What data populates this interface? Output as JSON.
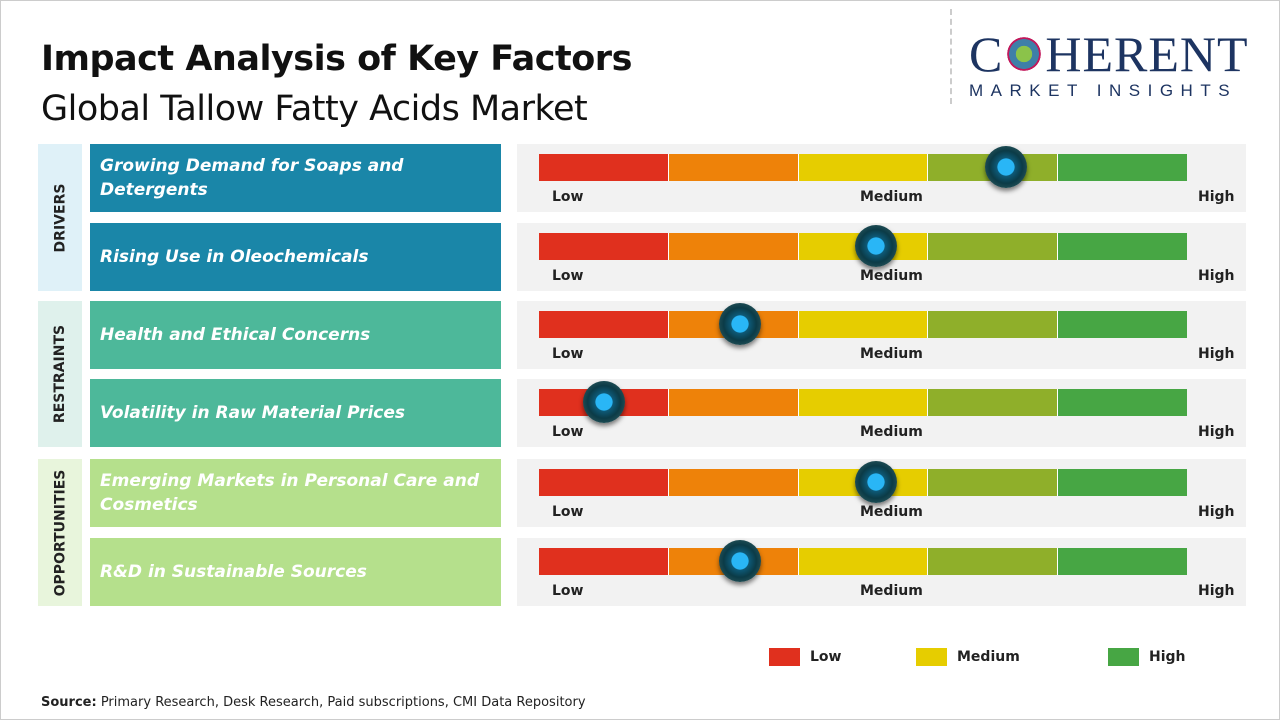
{
  "title": "Impact Analysis of Key Factors",
  "subtitle": "Global Tallow Fatty Acids Market",
  "logo": {
    "line1_a": "C",
    "line1_b": "HERENT",
    "line2": "MARKET INSIGHTS"
  },
  "colors": {
    "low": "#e0301e",
    "low_mid": "#ee8209",
    "medium": "#e6cd00",
    "mid_high": "#8faf2a",
    "high": "#47a644",
    "drivers": "#1a86a8",
    "restraints": "#4db89a",
    "opportunities": "#b5e08c"
  },
  "categories": [
    {
      "name": "DRIVERS",
      "bg": "#dff1f8",
      "label_color": "#1a86a8"
    },
    {
      "name": "RESTRAINTS",
      "bg": "#dff1ec",
      "label_color": "#4db89a"
    },
    {
      "name": "OPPORTUNITIES",
      "bg": "#e8f5dc",
      "label_color": "#b5e08c"
    }
  ],
  "chart_data": {
    "type": "gauge",
    "scale": [
      "Low",
      "Medium",
      "High"
    ],
    "factors": [
      {
        "category": "DRIVERS",
        "label": "Growing Demand for Soaps and Detergents",
        "impact": 0.72
      },
      {
        "category": "DRIVERS",
        "label": "Rising Use in Oleochemicals",
        "impact": 0.52
      },
      {
        "category": "RESTRAINTS",
        "label": "Health and Ethical Concerns",
        "impact": 0.31
      },
      {
        "category": "RESTRAINTS",
        "label": "Volatility in Raw Material Prices",
        "impact": 0.1
      },
      {
        "category": "OPPORTUNITIES",
        "label": "Emerging Markets in Personal Care and Cosmetics",
        "impact": 0.52
      },
      {
        "category": "OPPORTUNITIES",
        "label": "R&D in Sustainable Sources",
        "impact": 0.31
      }
    ],
    "legend": [
      {
        "label": "Low",
        "color": "#e0301e"
      },
      {
        "label": "Medium",
        "color": "#e6cd00"
      },
      {
        "label": "High",
        "color": "#47a644"
      }
    ]
  },
  "source": {
    "label": "Source:",
    "text": " Primary Research, Desk Research, Paid subscriptions, CMI Data Repository"
  }
}
